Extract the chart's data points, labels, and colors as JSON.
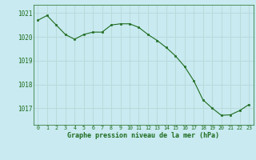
{
  "x": [
    0,
    1,
    2,
    3,
    4,
    5,
    6,
    7,
    8,
    9,
    10,
    11,
    12,
    13,
    14,
    15,
    16,
    17,
    18,
    19,
    20,
    21,
    22,
    23
  ],
  "y": [
    1020.7,
    1020.9,
    1020.5,
    1020.1,
    1019.9,
    1020.1,
    1020.2,
    1020.2,
    1020.5,
    1020.55,
    1020.55,
    1020.4,
    1020.1,
    1019.85,
    1019.55,
    1019.2,
    1018.75,
    1018.15,
    1017.35,
    1017.0,
    1016.7,
    1016.72,
    1016.9,
    1017.15
  ],
  "bg_color": "#c8eaf0",
  "line_color": "#1e6b1e",
  "marker_color": "#1e6b1e",
  "grid_color": "#b8d8d8",
  "ylabel_ticks": [
    1017,
    1018,
    1019,
    1020,
    1021
  ],
  "xlabel_label": "Graphe pression niveau de la mer (hPa)",
  "ylim": [
    1016.3,
    1021.35
  ],
  "xlim": [
    -0.5,
    23.5
  ]
}
